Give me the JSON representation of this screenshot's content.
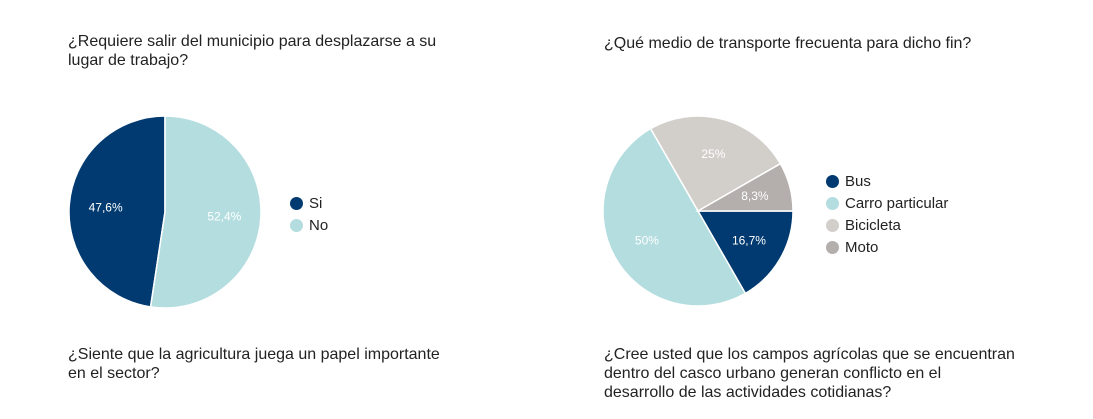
{
  "questions": {
    "q1": "¿Requiere salir del municipio para desplazarse a su\nlugar de trabajo?",
    "q2": "¿Qué medio de transporte frecuenta para dicho fin?",
    "q3": "¿Siente que la agricultura juega un papel importante\nen el sector?",
    "q4": "¿Cree usted que los campos agrícolas que se encuentran\ndentro del casco urbano generan conflicto en el\ndesarrollo de las actividades cotidianas?"
  },
  "colors": {
    "dark_blue": "#003A70",
    "light_blue": "#B4DDE0",
    "light_gray": "#D2CFCB",
    "gray": "#B4AFAD"
  },
  "chart_data": [
    {
      "type": "pie",
      "legend_position": "right",
      "slices": [
        {
          "label": "Si",
          "value": 47.6,
          "display": "47,6%",
          "color": "#003A70"
        },
        {
          "label": "No",
          "value": 52.4,
          "display": "52,4%",
          "color": "#B4DDE0"
        }
      ]
    },
    {
      "type": "pie",
      "legend_position": "right",
      "slices": [
        {
          "label": "Bus",
          "value": 16.7,
          "display": "16,7%",
          "color": "#003A70"
        },
        {
          "label": "Carro particular",
          "value": 50,
          "display": "50%",
          "color": "#B4DDE0"
        },
        {
          "label": "Bicicleta",
          "value": 25,
          "display": "25%",
          "color": "#D2CFCB"
        },
        {
          "label": "Moto",
          "value": 8.3,
          "display": "8,3%",
          "color": "#B4AFAD"
        }
      ]
    }
  ]
}
